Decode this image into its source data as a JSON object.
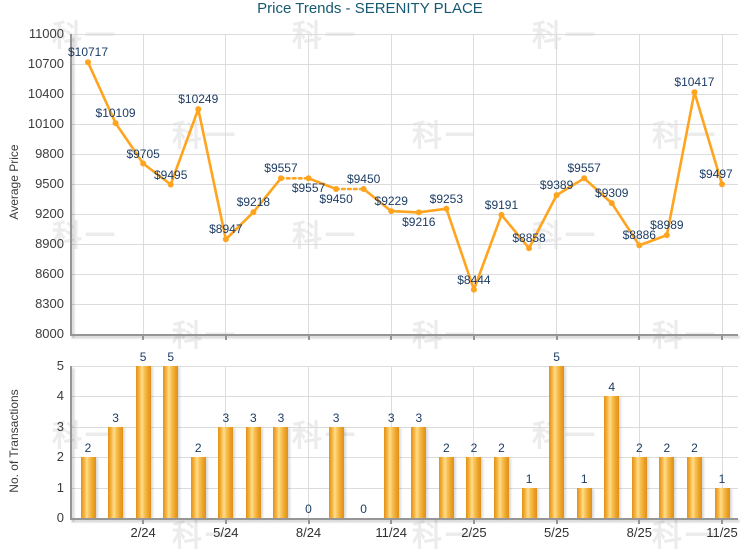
{
  "title": "Price Trends - SERENITY PLACE",
  "watermark_text": "科一",
  "colors": {
    "line": "#FFA41E",
    "bar_edge": "#E09018",
    "bar_bright": "#F6B13A",
    "bar_highlight": "#FFDD8E",
    "bar_right": "#EDA227",
    "data_label": "#1D3C64",
    "title": "#155972",
    "tick_label": "#3C3C3C",
    "xtick_label": "#303030",
    "gridline": "#DCDCDC",
    "axis": "#969696",
    "watermark": "#ECECEC"
  },
  "chart_data": [
    {
      "type": "line",
      "name": "average-price",
      "title": "Price Trends - SERENITY PLACE",
      "ylabel": "Average Price",
      "ylim": [
        8000,
        11000
      ],
      "ytick_step": 300,
      "yticks": [
        11000,
        10700,
        10400,
        10100,
        9800,
        9500,
        9200,
        8900,
        8600,
        8300,
        8000
      ],
      "values": [
        10717,
        10109,
        9705,
        9495,
        10249,
        8947,
        9218,
        9557,
        9557,
        9450,
        9450,
        9229,
        9216,
        9253,
        8444,
        9191,
        8858,
        9389,
        9557,
        9309,
        8886,
        8989,
        10417,
        9497
      ],
      "point_labels": [
        "$10717",
        "$10109",
        "$9705",
        "$9495",
        "$10249",
        "$8947",
        "$9218",
        "$9557",
        "$9557",
        "$9450",
        "$9450",
        "$9229",
        "$9216",
        "$9253",
        "$8444",
        "$9191",
        "$8858",
        "$9389",
        "$9557",
        "$9309",
        "$8886",
        "$8989",
        "$10417",
        "$9497"
      ],
      "dashed_segment_start_indices": [
        7,
        9
      ],
      "label_below_indices": [
        8,
        9,
        12
      ],
      "xticks": [
        {
          "index": 2,
          "label": "2/24"
        },
        {
          "index": 5,
          "label": "5/24"
        },
        {
          "index": 8,
          "label": "8/24"
        },
        {
          "index": 11,
          "label": "11/24"
        },
        {
          "index": 14,
          "label": "2/25"
        },
        {
          "index": 17,
          "label": "5/25"
        },
        {
          "index": 20,
          "label": "8/25"
        },
        {
          "index": 23,
          "label": "11/25"
        }
      ],
      "grid": true,
      "legend": "none"
    },
    {
      "type": "bar",
      "name": "transactions",
      "ylabel": "No. of Transactions",
      "ylim": [
        0,
        5
      ],
      "yticks": [
        5,
        4,
        3,
        2,
        1,
        0
      ],
      "values": [
        2,
        3,
        5,
        5,
        2,
        3,
        3,
        3,
        0,
        3,
        0,
        3,
        3,
        2,
        2,
        2,
        1,
        5,
        1,
        4,
        2,
        2,
        2,
        1
      ],
      "xticks": [
        {
          "index": 2,
          "label": "2/24"
        },
        {
          "index": 5,
          "label": "5/24"
        },
        {
          "index": 8,
          "label": "8/24"
        },
        {
          "index": 11,
          "label": "11/24"
        },
        {
          "index": 14,
          "label": "2/25"
        },
        {
          "index": 17,
          "label": "5/25"
        },
        {
          "index": 20,
          "label": "8/25"
        },
        {
          "index": 23,
          "label": "11/25"
        }
      ],
      "grid": true,
      "legend": "none"
    }
  ]
}
